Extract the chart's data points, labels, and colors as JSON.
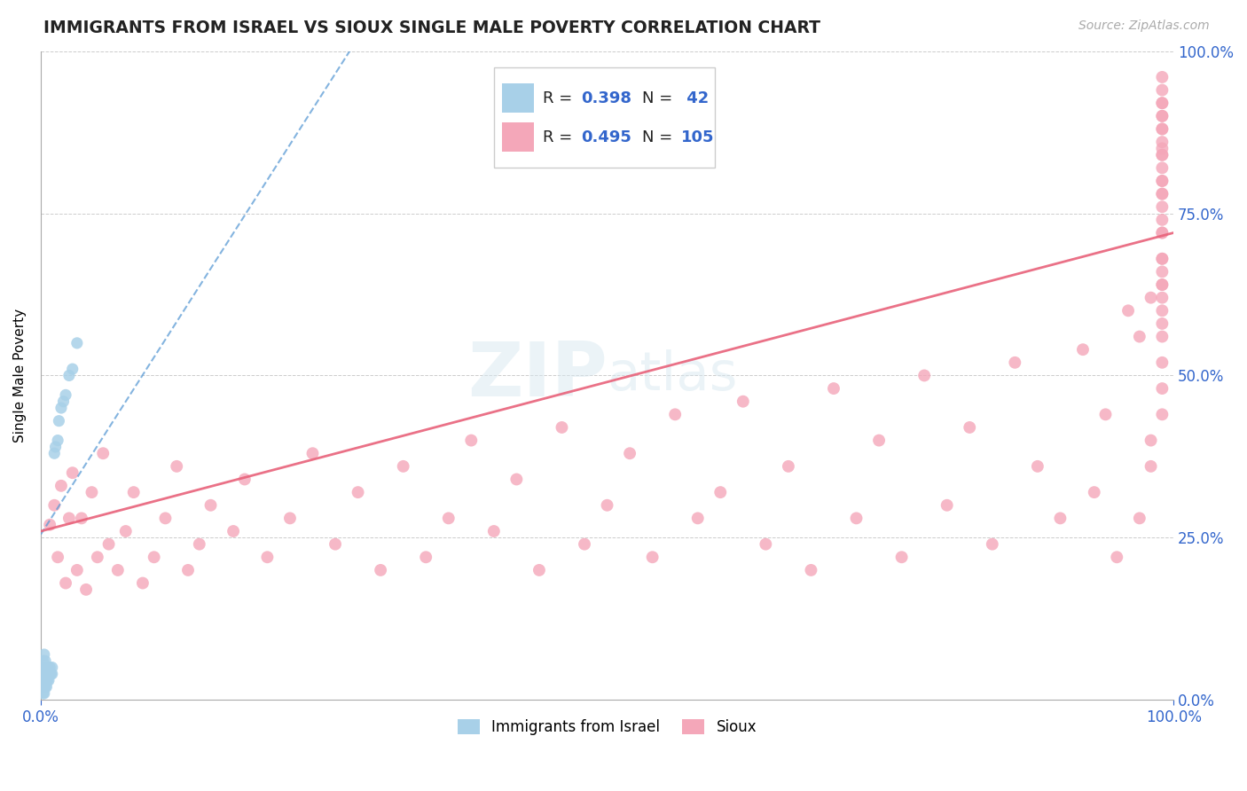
{
  "title": "IMMIGRANTS FROM ISRAEL VS SIOUX SINGLE MALE POVERTY CORRELATION CHART",
  "source": "Source: ZipAtlas.com",
  "ylabel": "Single Male Poverty",
  "xlim": [
    0,
    1
  ],
  "ylim": [
    0,
    1
  ],
  "xtick_labels": [
    "0.0%",
    "100.0%"
  ],
  "ytick_labels": [
    "0.0%",
    "25.0%",
    "50.0%",
    "75.0%",
    "100.0%"
  ],
  "ytick_positions": [
    0.0,
    0.25,
    0.5,
    0.75,
    1.0
  ],
  "legend_r1": "R = 0.398",
  "legend_n1": "N =  42",
  "legend_r2": "R = 0.495",
  "legend_n2": "N = 105",
  "legend_label1": "Immigrants from Israel",
  "legend_label2": "Sioux",
  "color_blue": "#a8d0e8",
  "color_pink": "#f4a7b9",
  "color_blue_line": "#5b9bd5",
  "color_pink_line": "#e8627a",
  "watermark": "ZIPatlas",
  "israel_x": [
    0.001,
    0.001,
    0.001,
    0.001,
    0.002,
    0.002,
    0.002,
    0.002,
    0.002,
    0.003,
    0.003,
    0.003,
    0.003,
    0.003,
    0.004,
    0.004,
    0.004,
    0.004,
    0.005,
    0.005,
    0.005,
    0.005,
    0.006,
    0.006,
    0.006,
    0.007,
    0.007,
    0.008,
    0.008,
    0.009,
    0.01,
    0.01,
    0.012,
    0.013,
    0.015,
    0.016,
    0.018,
    0.02,
    0.022,
    0.025,
    0.028,
    0.032
  ],
  "israel_y": [
    0.02,
    0.03,
    0.04,
    0.05,
    0.01,
    0.02,
    0.03,
    0.04,
    0.06,
    0.01,
    0.02,
    0.03,
    0.05,
    0.07,
    0.02,
    0.03,
    0.04,
    0.06,
    0.02,
    0.03,
    0.04,
    0.05,
    0.03,
    0.04,
    0.05,
    0.03,
    0.04,
    0.04,
    0.05,
    0.04,
    0.04,
    0.05,
    0.38,
    0.39,
    0.4,
    0.43,
    0.45,
    0.46,
    0.47,
    0.5,
    0.51,
    0.55
  ],
  "sioux_x": [
    0.008,
    0.012,
    0.015,
    0.018,
    0.022,
    0.025,
    0.028,
    0.032,
    0.036,
    0.04,
    0.045,
    0.05,
    0.055,
    0.06,
    0.068,
    0.075,
    0.082,
    0.09,
    0.1,
    0.11,
    0.12,
    0.13,
    0.14,
    0.15,
    0.17,
    0.18,
    0.2,
    0.22,
    0.24,
    0.26,
    0.28,
    0.3,
    0.32,
    0.34,
    0.36,
    0.38,
    0.4,
    0.42,
    0.44,
    0.46,
    0.48,
    0.5,
    0.52,
    0.54,
    0.56,
    0.58,
    0.6,
    0.62,
    0.64,
    0.66,
    0.68,
    0.7,
    0.72,
    0.74,
    0.76,
    0.78,
    0.8,
    0.82,
    0.84,
    0.86,
    0.88,
    0.9,
    0.92,
    0.93,
    0.94,
    0.95,
    0.96,
    0.97,
    0.97,
    0.98,
    0.98,
    0.98,
    0.99,
    0.99,
    0.99,
    0.99,
    0.99,
    0.99,
    0.99,
    0.99,
    0.99,
    0.99,
    0.99,
    0.99,
    0.99,
    0.99,
    0.99,
    0.99,
    0.99,
    0.99,
    0.99,
    0.99,
    0.99,
    0.99,
    0.99,
    0.99,
    0.99,
    0.99,
    0.99,
    0.99,
    0.99,
    0.99,
    0.99,
    0.99,
    0.99
  ],
  "sioux_y": [
    0.27,
    0.3,
    0.22,
    0.33,
    0.18,
    0.28,
    0.35,
    0.2,
    0.28,
    0.17,
    0.32,
    0.22,
    0.38,
    0.24,
    0.2,
    0.26,
    0.32,
    0.18,
    0.22,
    0.28,
    0.36,
    0.2,
    0.24,
    0.3,
    0.26,
    0.34,
    0.22,
    0.28,
    0.38,
    0.24,
    0.32,
    0.2,
    0.36,
    0.22,
    0.28,
    0.4,
    0.26,
    0.34,
    0.2,
    0.42,
    0.24,
    0.3,
    0.38,
    0.22,
    0.44,
    0.28,
    0.32,
    0.46,
    0.24,
    0.36,
    0.2,
    0.48,
    0.28,
    0.4,
    0.22,
    0.5,
    0.3,
    0.42,
    0.24,
    0.52,
    0.36,
    0.28,
    0.54,
    0.32,
    0.44,
    0.22,
    0.6,
    0.28,
    0.56,
    0.36,
    0.62,
    0.4,
    0.64,
    0.48,
    0.68,
    0.44,
    0.72,
    0.52,
    0.66,
    0.76,
    0.58,
    0.8,
    0.62,
    0.56,
    0.84,
    0.68,
    0.78,
    0.6,
    0.88,
    0.72,
    0.64,
    0.82,
    0.74,
    0.9,
    0.78,
    0.86,
    0.92,
    0.84,
    0.88,
    0.8,
    0.94,
    0.85,
    0.9,
    0.92,
    0.96
  ],
  "israel_line_x": [
    0.0,
    0.28
  ],
  "israel_line_y": [
    0.255,
    1.02
  ],
  "sioux_line_x": [
    0.0,
    1.0
  ],
  "sioux_line_y": [
    0.26,
    0.72
  ]
}
